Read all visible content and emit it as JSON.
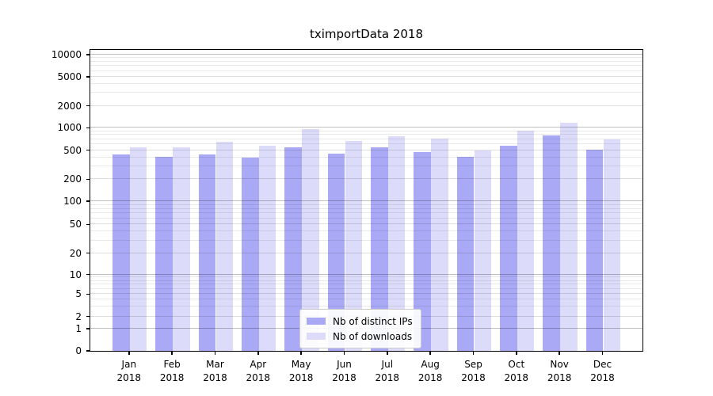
{
  "chart_data": {
    "type": "bar",
    "title": "tximportData 2018",
    "categories": [
      "Jan",
      "Feb",
      "Mar",
      "Apr",
      "May",
      "Jun",
      "Jul",
      "Aug",
      "Sep",
      "Oct",
      "Nov",
      "Dec"
    ],
    "year_label": "2018",
    "series": [
      {
        "name": "Nb of distinct IPs",
        "color": "#a9a9f6",
        "values": [
          435,
          410,
          440,
          400,
          540,
          450,
          545,
          475,
          405,
          570,
          790,
          510
        ]
      },
      {
        "name": "Nb of downloads",
        "color": "#dcdcfa",
        "values": [
          540,
          540,
          655,
          580,
          950,
          670,
          765,
          710,
          490,
          920,
          1180,
          705
        ]
      }
    ],
    "xlabel": "",
    "ylabel": "",
    "yscale": "symlog",
    "yticks": [
      0,
      1,
      2,
      5,
      10,
      20,
      50,
      100,
      200,
      500,
      1000,
      2000,
      5000,
      10000
    ],
    "ylim": [
      0,
      12200
    ],
    "grid": true,
    "legend_position": "lower center",
    "background_color": "#ffffff"
  }
}
